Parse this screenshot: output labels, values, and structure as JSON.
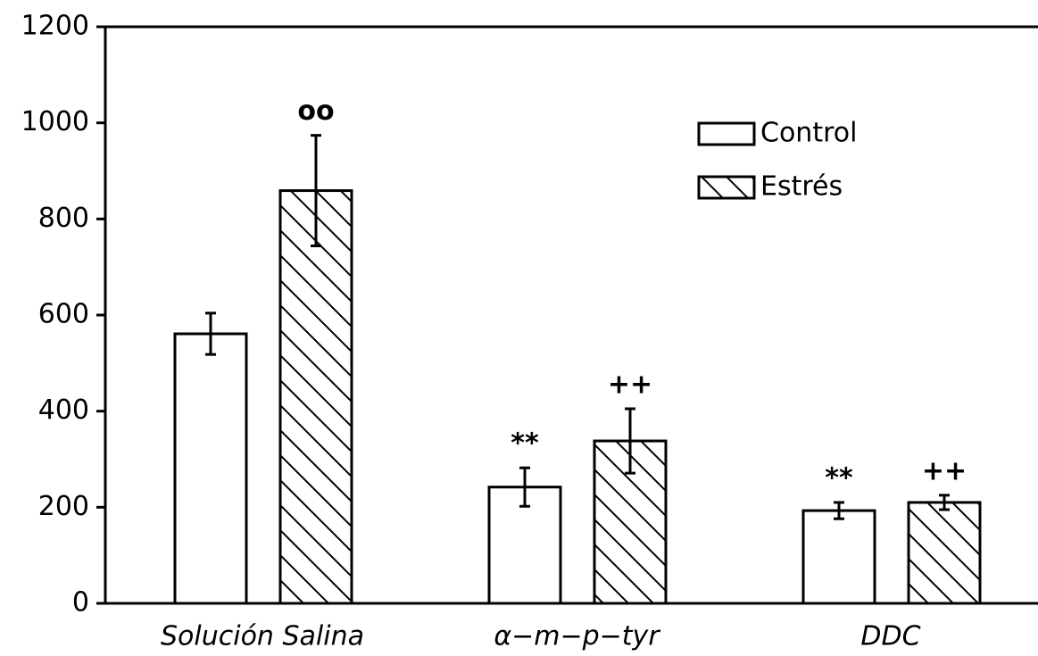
{
  "chart_data": {
    "type": "bar",
    "categories": [
      "Solución Salina",
      "α−m−p−tyr",
      "DDC"
    ],
    "series": [
      {
        "name": "Control",
        "color": "#ffffff",
        "pattern": "none",
        "values": [
          561,
          242,
          193
        ],
        "errors": [
          43,
          40,
          17
        ]
      },
      {
        "name": "Estrés",
        "color": "#ffffff",
        "pattern": "hatch",
        "values": [
          859,
          338,
          210
        ],
        "errors": [
          115,
          67,
          15
        ]
      }
    ],
    "annotations": [
      {
        "text": "oo",
        "series": 1,
        "index": 0
      },
      {
        "text": "**",
        "series": 0,
        "index": 1
      },
      {
        "text": "++",
        "series": 1,
        "index": 1
      },
      {
        "text": "**",
        "series": 0,
        "index": 2
      },
      {
        "text": "++",
        "series": 1,
        "index": 2
      }
    ],
    "ylim": [
      0,
      1200
    ],
    "yticks": [
      0,
      200,
      400,
      600,
      800,
      1000,
      1200
    ],
    "legend": "upper right"
  }
}
